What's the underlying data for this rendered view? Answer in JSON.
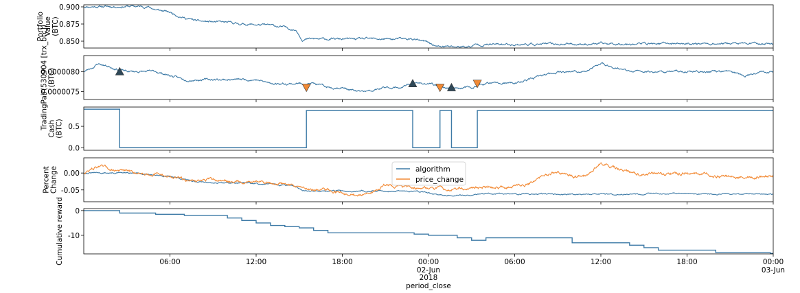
{
  "colors": {
    "algorithm": "#3d7aa6",
    "price": "#f28a35",
    "marker_buy": "#2f4858",
    "marker_sell": "#f28a35"
  },
  "figure": {
    "xlabel": "period_close",
    "x_ticks": [
      "06:00",
      "12:00",
      "18:00",
      "00:00",
      "06:00",
      "12:00",
      "18:00",
      "00:00"
    ],
    "x_tick_hours": [
      6,
      12,
      18,
      24,
      30,
      36,
      42,
      48
    ],
    "x_sub_labels": [
      {
        "hour": 24,
        "lines": [
          "02-Jun",
          "2018"
        ]
      },
      {
        "hour": 48,
        "lines": [
          "03-Jun"
        ]
      }
    ],
    "x_range_hours": [
      0,
      48
    ]
  },
  "chart_data": [
    {
      "type": "line",
      "name": "portfolio",
      "ylabel_lines": [
        "Portfolio",
        "Value",
        "(BTC)"
      ],
      "ylim": [
        0.84,
        0.903
      ],
      "y_ticks": [
        "0.900",
        "0.875",
        "0.850"
      ],
      "y_tick_values": [
        0.9,
        0.875,
        0.85
      ],
      "series": [
        {
          "key": "algorithm",
          "kind": "noisy",
          "noise": 0.0012,
          "seed": 11,
          "points": [
            [
              0,
              0.9005
            ],
            [
              2.5,
              0.9005
            ],
            [
              3,
              0.901
            ],
            [
              4.5,
              0.9
            ],
            [
              5,
              0.896
            ],
            [
              6,
              0.892
            ],
            [
              7,
              0.884
            ],
            [
              8,
              0.879
            ],
            [
              9,
              0.878
            ],
            [
              10,
              0.877
            ],
            [
              11,
              0.875
            ],
            [
              12,
              0.874
            ],
            [
              13,
              0.873
            ],
            [
              14,
              0.87
            ],
            [
              14.8,
              0.866
            ],
            [
              15.2,
              0.853
            ],
            [
              20,
              0.853
            ],
            [
              23,
              0.853
            ],
            [
              23.5,
              0.85
            ],
            [
              24,
              0.848
            ],
            [
              24.6,
              0.842
            ],
            [
              26,
              0.842
            ],
            [
              27,
              0.842
            ],
            [
              27.3,
              0.845
            ],
            [
              38,
              0.8465
            ],
            [
              48,
              0.8465
            ]
          ]
        }
      ]
    },
    {
      "type": "line",
      "name": "price",
      "ylabel_lines": [
        "TradingPair(530904 [trx_btc])",
        "(BTC)"
      ],
      "ylim": [
        7.3e-06,
        8.4e-06
      ],
      "y_ticks": [
        "0.0000080",
        "0.0000075"
      ],
      "y_tick_values": [
        8e-06,
        7.5e-06
      ],
      "series": [
        {
          "key": "algorithm",
          "kind": "noisy",
          "noise": 2e-08,
          "seed": 23,
          "points": [
            [
              0,
              8e-06
            ],
            [
              0.6,
              8.1e-06
            ],
            [
              1,
              8.2e-06
            ],
            [
              2,
              8.1e-06
            ],
            [
              3,
              8e-06
            ],
            [
              4,
              8e-06
            ],
            [
              5,
              8e-06
            ],
            [
              6,
              7.9e-06
            ],
            [
              7,
              7.8e-06
            ],
            [
              8,
              7.8e-06
            ],
            [
              9,
              7.8e-06
            ],
            [
              10,
              7.8e-06
            ],
            [
              11,
              7.8e-06
            ],
            [
              12,
              7.8e-06
            ],
            [
              13,
              7.7e-06
            ],
            [
              14,
              7.7e-06
            ],
            [
              15,
              7.7e-06
            ],
            [
              16,
              7.7e-06
            ],
            [
              17,
              7.6e-06
            ],
            [
              18,
              7.6e-06
            ],
            [
              19,
              7.5e-06
            ],
            [
              20,
              7.5e-06
            ],
            [
              21,
              7.6e-06
            ],
            [
              22,
              7.6e-06
            ],
            [
              23,
              7.7e-06
            ],
            [
              24,
              7.7e-06
            ],
            [
              25,
              7.6e-06
            ],
            [
              26,
              7.6e-06
            ],
            [
              27,
              7.6e-06
            ],
            [
              28,
              7.7e-06
            ],
            [
              29,
              7.7e-06
            ],
            [
              30,
              7.7e-06
            ],
            [
              31,
              7.8e-06
            ],
            [
              32,
              7.9e-06
            ],
            [
              33,
              8e-06
            ],
            [
              34,
              8e-06
            ],
            [
              35,
              8e-06
            ],
            [
              36,
              8.2e-06
            ],
            [
              37,
              8.1e-06
            ],
            [
              38,
              8e-06
            ],
            [
              39,
              8e-06
            ],
            [
              40,
              8e-06
            ],
            [
              41,
              8e-06
            ],
            [
              42,
              8e-06
            ],
            [
              43,
              8e-06
            ],
            [
              44,
              8e-06
            ],
            [
              45,
              8e-06
            ],
            [
              46,
              7.9e-06
            ],
            [
              47,
              8e-06
            ],
            [
              48,
              8e-06
            ]
          ]
        }
      ],
      "markers": [
        {
          "hour": 2.5,
          "value": 8e-06,
          "kind": "buy"
        },
        {
          "hour": 15.5,
          "value": 7.6e-06,
          "kind": "sell"
        },
        {
          "hour": 22.9,
          "value": 7.7e-06,
          "kind": "buy"
        },
        {
          "hour": 24.8,
          "value": 7.6e-06,
          "kind": "sell"
        },
        {
          "hour": 25.6,
          "value": 7.6e-06,
          "kind": "buy"
        },
        {
          "hour": 27.4,
          "value": 7.7e-06,
          "kind": "sell"
        }
      ]
    },
    {
      "type": "line",
      "name": "cash",
      "ylabel_lines": [
        "Cash",
        "(BTC)"
      ],
      "ylim": [
        -0.06,
        0.95
      ],
      "y_ticks": [
        "0.5",
        "0.0"
      ],
      "y_tick_values": [
        0.5,
        0.0
      ],
      "series": [
        {
          "key": "algorithm",
          "kind": "step",
          "points": [
            [
              0,
              0.9
            ],
            [
              2.5,
              0.9
            ],
            [
              2.5,
              0.0
            ],
            [
              15.5,
              0.0
            ],
            [
              15.5,
              0.87
            ],
            [
              22.9,
              0.87
            ],
            [
              22.9,
              0.0
            ],
            [
              24.8,
              0.0
            ],
            [
              24.8,
              0.87
            ],
            [
              25.6,
              0.87
            ],
            [
              25.6,
              0.0
            ],
            [
              27.4,
              0.0
            ],
            [
              27.4,
              0.87
            ],
            [
              48,
              0.87
            ]
          ]
        }
      ]
    },
    {
      "type": "line",
      "name": "percent",
      "ylabel_lines": [
        "Percent",
        "Change"
      ],
      "ylim": [
        -0.085,
        0.045
      ],
      "y_ticks": [
        "0.00",
        "-0.05"
      ],
      "y_tick_values": [
        0.0,
        -0.05
      ],
      "legend": {
        "position": "upper-center",
        "entries": [
          "algorithm",
          "price_change"
        ]
      },
      "series": [
        {
          "key": "algorithm",
          "label": "algorithm",
          "kind": "noisy",
          "noise": 0.0015,
          "seed": 31,
          "points": [
            [
              0,
              0.0
            ],
            [
              2.5,
              0.0
            ],
            [
              4.5,
              -0.002
            ],
            [
              5,
              -0.006
            ],
            [
              6,
              -0.01
            ],
            [
              7,
              -0.02
            ],
            [
              8,
              -0.026
            ],
            [
              9,
              -0.028
            ],
            [
              10,
              -0.029
            ],
            [
              11,
              -0.03
            ],
            [
              12,
              -0.032
            ],
            [
              13,
              -0.033
            ],
            [
              14,
              -0.036
            ],
            [
              14.8,
              -0.04
            ],
            [
              15.2,
              -0.053
            ],
            [
              23,
              -0.053
            ],
            [
              23.5,
              -0.056
            ],
            [
              24,
              -0.058
            ],
            [
              24.6,
              -0.066
            ],
            [
              27,
              -0.066
            ],
            [
              27.3,
              -0.062
            ],
            [
              48,
              -0.062
            ]
          ]
        },
        {
          "key": "price",
          "label": "price_change",
          "kind": "noisy",
          "noise": 0.0035,
          "seed": 47,
          "points": [
            [
              0,
              0.0
            ],
            [
              0.6,
              0.012
            ],
            [
              1,
              0.02
            ],
            [
              2,
              0.01
            ],
            [
              3,
              0.005
            ],
            [
              4,
              0.0
            ],
            [
              5,
              -0.002
            ],
            [
              6,
              -0.01
            ],
            [
              7,
              -0.02
            ],
            [
              8,
              -0.022
            ],
            [
              9,
              -0.02
            ],
            [
              10,
              -0.025
            ],
            [
              11,
              -0.025
            ],
            [
              12,
              -0.025
            ],
            [
              13,
              -0.03
            ],
            [
              14,
              -0.032
            ],
            [
              15,
              -0.04
            ],
            [
              16,
              -0.048
            ],
            [
              17,
              -0.052
            ],
            [
              18,
              -0.056
            ],
            [
              19,
              -0.064
            ],
            [
              19.6,
              -0.068
            ],
            [
              20,
              -0.06
            ],
            [
              21,
              -0.034
            ],
            [
              22,
              -0.04
            ],
            [
              23,
              -0.042
            ],
            [
              24,
              -0.044
            ],
            [
              25,
              -0.048
            ],
            [
              26,
              -0.046
            ],
            [
              27,
              -0.044
            ],
            [
              28,
              -0.042
            ],
            [
              29,
              -0.04
            ],
            [
              30,
              -0.04
            ],
            [
              31,
              -0.03
            ],
            [
              32,
              -0.01
            ],
            [
              33,
              0.005
            ],
            [
              34,
              -0.01
            ],
            [
              35,
              -0.005
            ],
            [
              36,
              0.03
            ],
            [
              37,
              0.015
            ],
            [
              38,
              0.0
            ],
            [
              39,
              -0.002
            ],
            [
              40,
              -0.002
            ],
            [
              41,
              -0.005
            ],
            [
              42,
              0.0
            ],
            [
              43,
              -0.005
            ],
            [
              44,
              -0.01
            ],
            [
              45,
              -0.01
            ],
            [
              46,
              -0.015
            ],
            [
              47,
              -0.012
            ],
            [
              48,
              -0.01
            ]
          ]
        }
      ]
    },
    {
      "type": "line",
      "name": "reward",
      "ylabel_lines": [
        "Cumulative reward"
      ],
      "ylim": [
        -17.5,
        0.8
      ],
      "y_ticks": [
        "0",
        "-10"
      ],
      "y_tick_values": [
        0,
        -10
      ],
      "series": [
        {
          "key": "algorithm",
          "kind": "step",
          "points": [
            [
              0,
              0
            ],
            [
              2.5,
              0
            ],
            [
              2.5,
              -1
            ],
            [
              5,
              -1
            ],
            [
              5,
              -1.5
            ],
            [
              7,
              -1.5
            ],
            [
              7,
              -2
            ],
            [
              10,
              -2
            ],
            [
              10,
              -3
            ],
            [
              11,
              -3
            ],
            [
              11,
              -4
            ],
            [
              12,
              -4
            ],
            [
              12,
              -5
            ],
            [
              13,
              -5
            ],
            [
              13,
              -6
            ],
            [
              14,
              -6
            ],
            [
              14,
              -6.5
            ],
            [
              15,
              -6.5
            ],
            [
              15,
              -7
            ],
            [
              16,
              -7
            ],
            [
              16,
              -8
            ],
            [
              17,
              -8
            ],
            [
              17,
              -9
            ],
            [
              23,
              -9
            ],
            [
              23,
              -9.5
            ],
            [
              24,
              -9.5
            ],
            [
              24,
              -10
            ],
            [
              26,
              -10
            ],
            [
              26,
              -11
            ],
            [
              27,
              -11
            ],
            [
              27,
              -12
            ],
            [
              28,
              -12
            ],
            [
              28,
              -11
            ],
            [
              34,
              -11
            ],
            [
              34,
              -13
            ],
            [
              38,
              -13
            ],
            [
              38,
              -14
            ],
            [
              39,
              -14
            ],
            [
              39,
              -15
            ],
            [
              40,
              -15
            ],
            [
              40,
              -16
            ],
            [
              44,
              -16
            ],
            [
              44,
              -17
            ],
            [
              47.8,
              -17
            ],
            [
              47.8,
              -17.3
            ],
            [
              48,
              -17.3
            ]
          ]
        }
      ]
    }
  ]
}
